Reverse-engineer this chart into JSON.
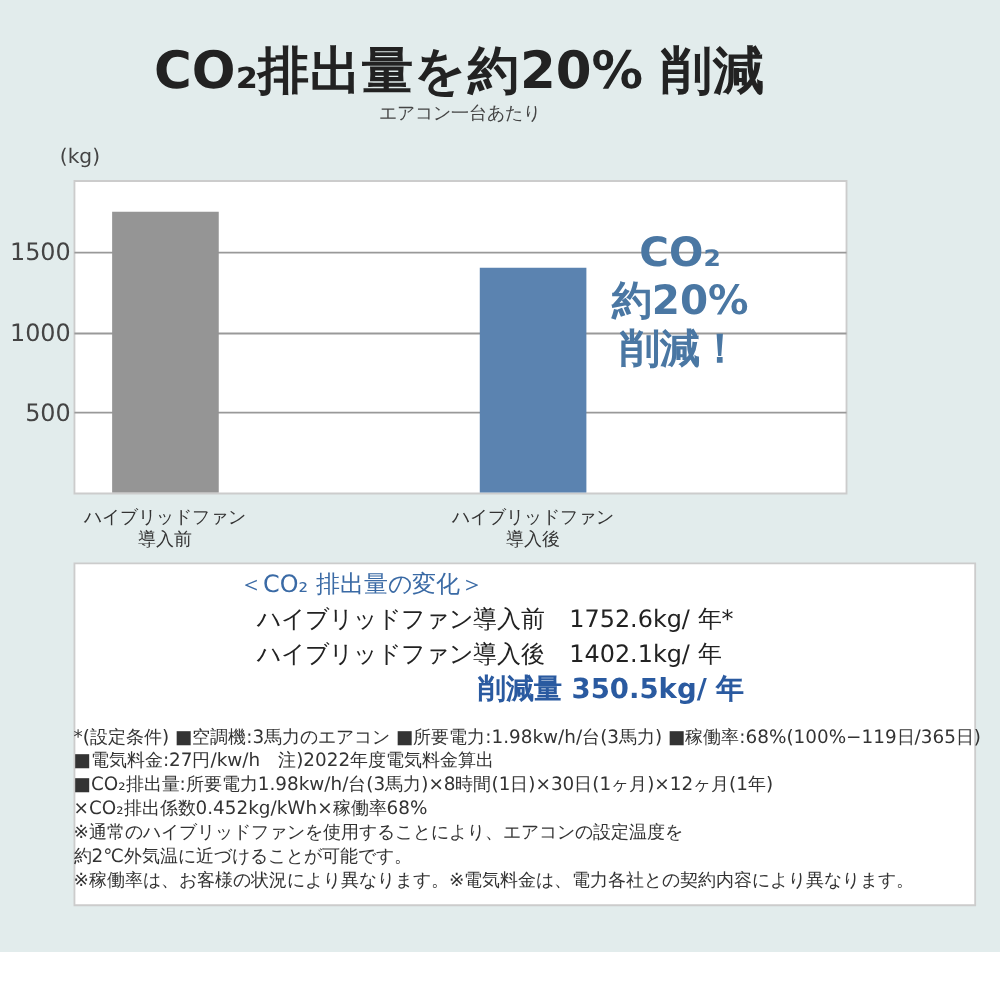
{
  "chart_data": {
    "type": "bar",
    "title": "CO₂排出量を約20% 削減",
    "subtitle": "エアコン一台あたり",
    "ylabel": "(kg)",
    "categories": [
      "ハイブリッドファン導入前",
      "ハイブリッドファン導入後"
    ],
    "values": [
      1752.6,
      1402.1
    ],
    "colors": [
      "#959595",
      "#5b83b0"
    ],
    "ylim": [
      0,
      1950
    ],
    "yticks": [
      500,
      1000,
      1500
    ],
    "grid": "y",
    "annotations": [
      "CO₂ 約20% 削減！",
      "＜CO₂ 排出量の変化＞",
      "ハイブリッドファン導入前　1752.6kg/ 年*",
      "ハイブリッドファン導入後　1402.1kg/ 年",
      "削減量 350.5kg/ 年",
      "*(設定条件) ■空調機:3馬力のエアコン ■所要電力:1.98kw/h/台(3馬力) ■稼働率:68%(100%−119日/365日)",
      "■電気料金:27円/kw/h　注)2022年度電気料金算出",
      "■CO₂排出量:所要電力1.98kw/h/台(3馬力)×8時間(1日)×30日(1ヶ月)×12ヶ月(1年)",
      "×CO₂排出係数0.452kg/kWh×稼働率68%",
      "※通常のハイブリッドファンを使用することにより、エアコンの設定温度を",
      "約2℃外気温に近づけることが可能です。",
      "※稼働率は、お客様の状況により異なります。※電気料金は、電力各社との契約内容により異なります。"
    ]
  }
}
